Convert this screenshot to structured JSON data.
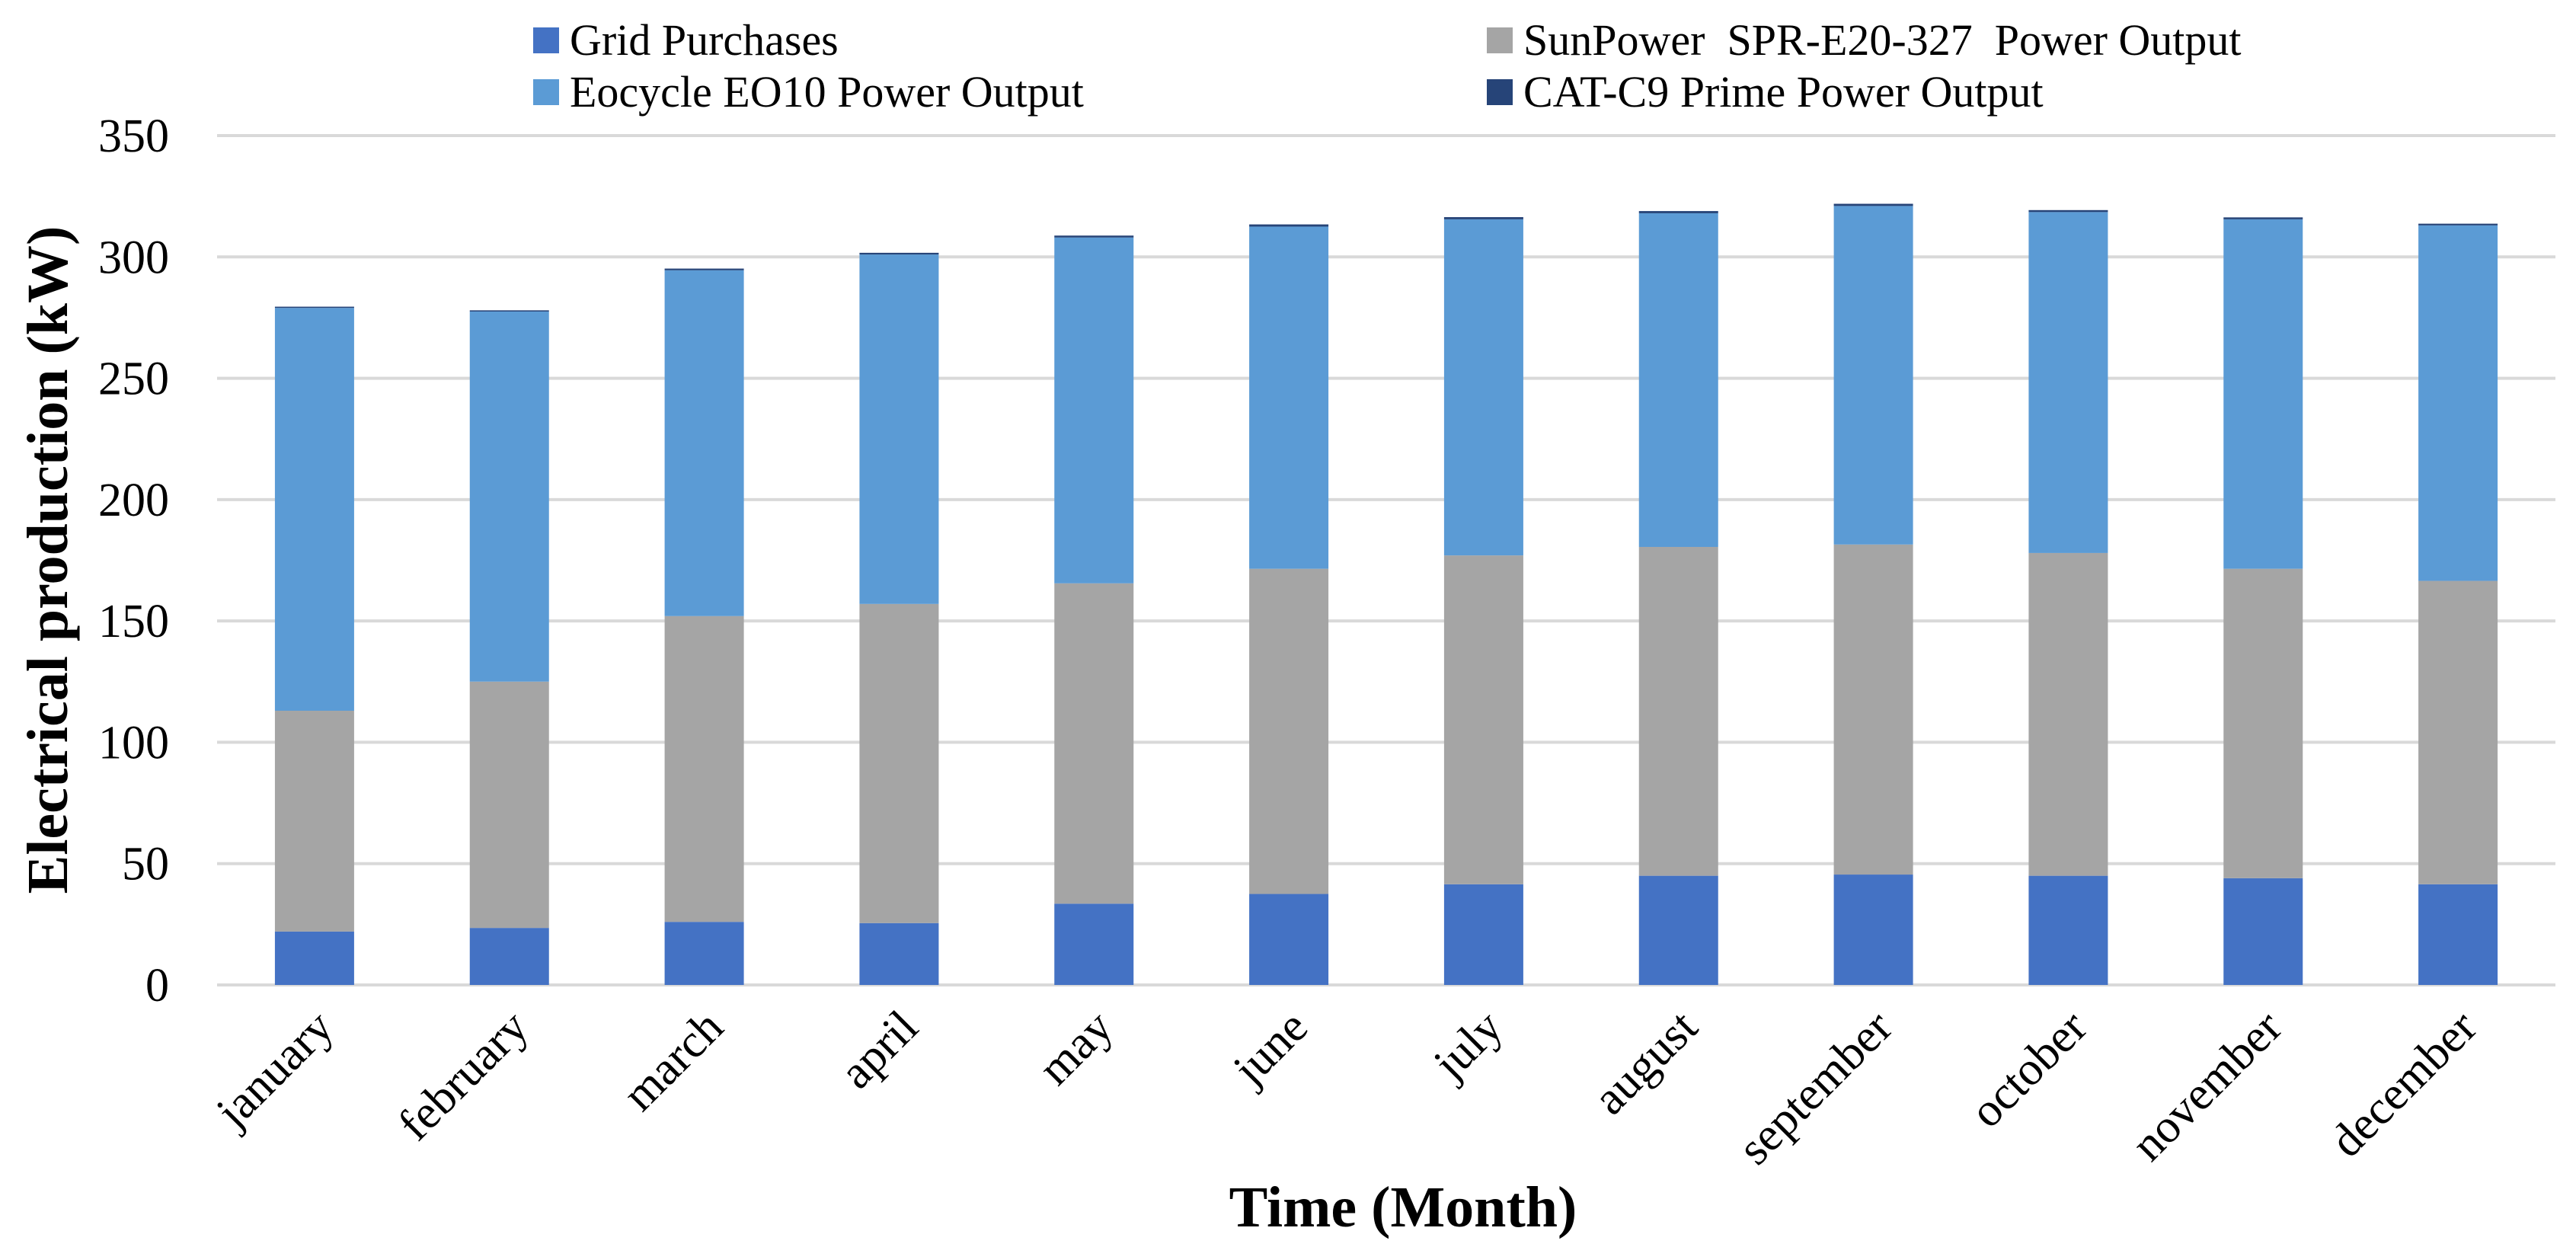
{
  "chart_data": {
    "type": "bar",
    "stacked": true,
    "title": "",
    "xlabel": "Time (Month)",
    "ylabel": "Electrical production (kW)",
    "ylim": [
      0,
      350
    ],
    "yticks": [
      0,
      50,
      100,
      150,
      200,
      250,
      300,
      350
    ],
    "grid": true,
    "legend_position": "top",
    "categories": [
      "january",
      "february",
      "march",
      "april",
      "may",
      "june",
      "july",
      "august",
      "september",
      "october",
      "november",
      "december"
    ],
    "series": [
      {
        "name": "Grid Purchases",
        "color": "#4472c4",
        "values": [
          22,
          23.5,
          26,
          25.5,
          33.5,
          37.5,
          41.5,
          45,
          45.5,
          45,
          44,
          41.5
        ]
      },
      {
        "name": "SunPower  SPR-E20-327  Power Output",
        "color": "#a5a5a5",
        "values": [
          91,
          101.5,
          126,
          131.5,
          132,
          134,
          135.5,
          135.5,
          136,
          133,
          127.5,
          125
        ]
      },
      {
        "name": "Eocycle EO10 Power Output",
        "color": "#5b9bd5",
        "values": [
          166,
          152.5,
          142.5,
          144,
          142.5,
          141,
          138.5,
          137.5,
          139.5,
          140.5,
          144,
          146.5
        ]
      },
      {
        "name": "CAT-C9 Prime Power Output",
        "color": "#264478",
        "values": [
          0.5,
          0.5,
          0.7,
          0.7,
          0.8,
          0.9,
          0.9,
          0.9,
          0.9,
          0.8,
          0.8,
          0.7
        ]
      }
    ]
  }
}
